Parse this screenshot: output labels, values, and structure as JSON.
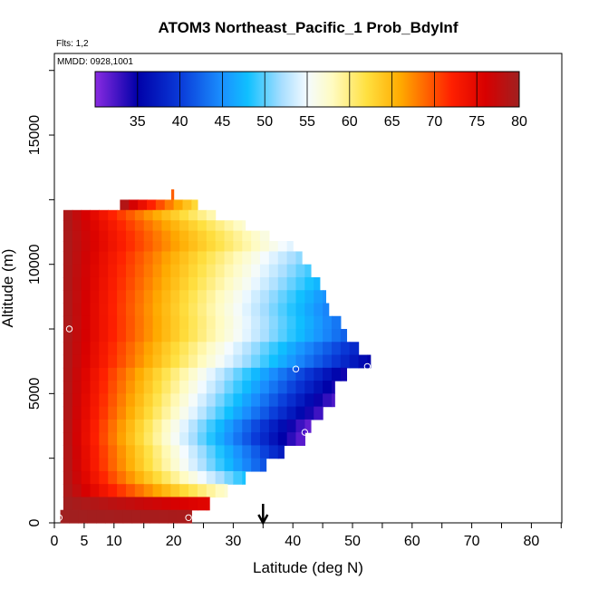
{
  "chart_data": {
    "type": "heatmap",
    "title": "ATOM3 Northeast_Pacific_1 Prob_BdyInf",
    "flights_label": "Flts: 1,2",
    "dates_label": "MMDD: 0928,1001",
    "xlabel": "Latitude (deg N)",
    "ylabel": "Altitude (m)",
    "xlim": [
      0,
      85
    ],
    "ylim": [
      0,
      17500
    ],
    "x_ticks": [
      0,
      5,
      10,
      20,
      30,
      40,
      50,
      60,
      70,
      80
    ],
    "y_ticks": [
      0,
      5000,
      10000,
      15000
    ],
    "colorbar": {
      "min": 30,
      "max": 80,
      "ticks": [
        35,
        40,
        45,
        50,
        55,
        60,
        65,
        70,
        75,
        80
      ],
      "stops": [
        {
          "v": 30,
          "c": "#8a2be2"
        },
        {
          "v": 35,
          "c": "#0000a8"
        },
        {
          "v": 40,
          "c": "#0a3ad8"
        },
        {
          "v": 45,
          "c": "#1a90ff"
        },
        {
          "v": 48,
          "c": "#10c0ff"
        },
        {
          "v": 52,
          "c": "#a8deff"
        },
        {
          "v": 55,
          "c": "#f4fbff"
        },
        {
          "v": 58,
          "c": "#fffbc0"
        },
        {
          "v": 62,
          "c": "#ffe040"
        },
        {
          "v": 66,
          "c": "#ffaa00"
        },
        {
          "v": 72,
          "c": "#ff2000"
        },
        {
          "v": 76,
          "c": "#d80000"
        },
        {
          "v": 80,
          "c": "#a02020"
        }
      ]
    },
    "grid": {
      "rows": [
        {
          "y0": 12500,
          "y1": 12900,
          "x0": 19.6,
          "x1": 20.0,
          "w": 60
        },
        {
          "y0": 12100,
          "y1": 12500,
          "x0": 11,
          "x1": 24,
          "w": 62
        },
        {
          "y0": 11700,
          "y1": 12100,
          "x0": 1.5,
          "x1": 27,
          "w": 58
        },
        {
          "y0": 11300,
          "y1": 11700,
          "x0": 1.5,
          "x1": 32,
          "w": 57
        },
        {
          "y0": 10900,
          "y1": 11300,
          "x0": 1.5,
          "x1": 36,
          "w": 56
        },
        {
          "y0": 10500,
          "y1": 10900,
          "x0": 1.5,
          "x1": 40,
          "w": 54
        },
        {
          "y0": 10000,
          "y1": 10500,
          "x0": 1.5,
          "x1": 41.5,
          "w": 51
        },
        {
          "y0": 9500,
          "y1": 10000,
          "x0": 1.5,
          "x1": 43,
          "w": 49
        },
        {
          "y0": 9000,
          "y1": 9500,
          "x0": 1.5,
          "x1": 44.5,
          "w": 47
        },
        {
          "y0": 8500,
          "y1": 9000,
          "x0": 1.5,
          "x1": 45.5,
          "w": 45
        },
        {
          "y0": 8000,
          "y1": 8500,
          "x0": 1.5,
          "x1": 46,
          "w": 44
        },
        {
          "y0": 7500,
          "y1": 8000,
          "x0": 1.5,
          "x1": 48,
          "w": 43
        },
        {
          "y0": 7000,
          "y1": 7500,
          "x0": 1.5,
          "x1": 49,
          "w": 42
        },
        {
          "y0": 6500,
          "y1": 7000,
          "x0": 1.5,
          "x1": 51,
          "w": 38
        },
        {
          "y0": 6000,
          "y1": 6500,
          "x0": 1.5,
          "x1": 53,
          "w": 35
        },
        {
          "y0": 5500,
          "y1": 6000,
          "x0": 1.5,
          "x1": 49,
          "w": 34
        },
        {
          "y0": 5000,
          "y1": 5500,
          "x0": 1.5,
          "x1": 47,
          "w": 34
        },
        {
          "y0": 4500,
          "y1": 5000,
          "x0": 1.5,
          "x1": 47,
          "w": 32
        },
        {
          "y0": 4000,
          "y1": 4500,
          "x0": 1.5,
          "x1": 45,
          "w": 32
        },
        {
          "y0": 3500,
          "y1": 4000,
          "x0": 1.5,
          "x1": 43,
          "w": 31
        },
        {
          "y0": 3000,
          "y1": 3500,
          "x0": 1.5,
          "x1": 42,
          "w": 31
        },
        {
          "y0": 2500,
          "y1": 3000,
          "x0": 1.5,
          "x1": 38.5,
          "w": 37
        },
        {
          "y0": 2000,
          "y1": 2500,
          "x0": 1.5,
          "x1": 35.5,
          "w": 41
        },
        {
          "y0": 1500,
          "y1": 2000,
          "x0": 1.5,
          "x1": 32,
          "w": 48
        },
        {
          "y0": 1000,
          "y1": 1500,
          "x0": 1.5,
          "x1": 29,
          "w": 57
        },
        {
          "y0": 500,
          "y1": 1000,
          "x0": 1.5,
          "x1": 26,
          "w": 66
        },
        {
          "y0": 0,
          "y1": 500,
          "x0": 1.0,
          "x1": 23,
          "w": 78
        }
      ]
    },
    "points": [
      {
        "lat": 2.5,
        "alt": 7500
      },
      {
        "lat": 40.5,
        "alt": 5950
      },
      {
        "lat": 52.5,
        "alt": 6050
      },
      {
        "lat": 42.0,
        "alt": 3500
      },
      {
        "lat": 0.8,
        "alt": 200
      },
      {
        "lat": 22.5,
        "alt": 200
      }
    ],
    "arrow_lat": 35
  },
  "colors": {
    "axis": "#000000",
    "point_stroke": "#ffffff"
  }
}
